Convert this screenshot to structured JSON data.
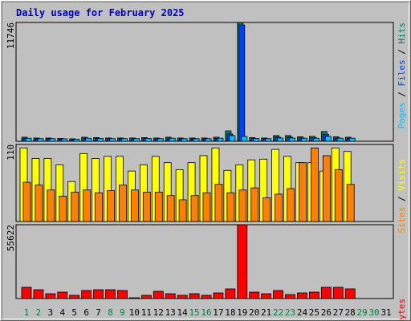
{
  "title": "Daily usage for February 2025",
  "chart_data": [
    {
      "type": "bar",
      "categories": [
        "1",
        "2",
        "3",
        "4",
        "5",
        "6",
        "7",
        "8",
        "9",
        "10",
        "11",
        "12",
        "13",
        "14",
        "15",
        "16",
        "17",
        "18",
        "19",
        "20",
        "21",
        "22",
        "23",
        "24",
        "25",
        "26",
        "27",
        "28",
        "29",
        "30",
        "31"
      ],
      "category_colors": [
        "#008040",
        "#008040",
        "#000000",
        "#000000",
        "#000000",
        "#000000",
        "#000000",
        "#008040",
        "#008040",
        "#000000",
        "#000000",
        "#000000",
        "#000000",
        "#000000",
        "#008040",
        "#008040",
        "#000000",
        "#000000",
        "#000000",
        "#000000",
        "#000000",
        "#008040",
        "#008040",
        "#000000",
        "#000000",
        "#000000",
        "#000000",
        "#000000",
        "#008040",
        "#008040",
        "#000000"
      ],
      "legend_separator": " / ",
      "ylim": [
        0,
        11746
      ],
      "yticks": [
        11746
      ],
      "series": [
        {
          "name": "Hits",
          "color": "#00805c",
          "values": [
            400,
            320,
            320,
            280,
            240,
            400,
            360,
            320,
            320,
            320,
            360,
            320,
            400,
            320,
            320,
            320,
            400,
            1030,
            11746,
            360,
            320,
            560,
            560,
            440,
            480,
            960,
            440,
            400,
            null,
            null,
            null
          ]
        },
        {
          "name": "Files",
          "color": "#0040ff",
          "values": [
            280,
            240,
            240,
            200,
            160,
            280,
            260,
            240,
            240,
            240,
            260,
            240,
            280,
            240,
            240,
            240,
            280,
            720,
            11500,
            260,
            240,
            400,
            400,
            320,
            340,
            680,
            320,
            280,
            null,
            null,
            null
          ]
        },
        {
          "name": "Pages",
          "color": "#00c0ff",
          "values": [
            300,
            260,
            260,
            240,
            200,
            300,
            280,
            260,
            260,
            260,
            280,
            260,
            300,
            260,
            260,
            260,
            300,
            560,
            480,
            280,
            260,
            320,
            320,
            300,
            300,
            480,
            300,
            300,
            null,
            null,
            null
          ]
        }
      ]
    },
    {
      "type": "bar",
      "legend_separator": " / ",
      "ylim": [
        0,
        110
      ],
      "yticks": [
        110
      ],
      "series": [
        {
          "name": "Visits",
          "color": "#ffff00",
          "values": [
            105,
            90,
            90,
            81,
            57,
            97,
            90,
            93,
            93,
            72,
            81,
            93,
            84,
            74,
            84,
            94,
            105,
            73,
            81,
            88,
            89,
            103,
            93,
            84,
            84,
            72,
            105,
            100,
            null,
            null,
            null
          ]
        },
        {
          "name": "Sites",
          "color": "#ff8000",
          "values": [
            56,
            52,
            45,
            36,
            42,
            45,
            41,
            44,
            52,
            45,
            42,
            42,
            37,
            31,
            37,
            41,
            53,
            41,
            45,
            48,
            34,
            39,
            47,
            84,
            105,
            94,
            74,
            53,
            null,
            null,
            null
          ]
        }
      ]
    },
    {
      "type": "bar",
      "ylim": [
        0,
        55622
      ],
      "yticks": [
        55622
      ],
      "series": [
        {
          "name": "KBytes",
          "color": "#ff0000",
          "values": [
            8460,
            6650,
            3630,
            4840,
            2420,
            6050,
            6650,
            6650,
            6050,
            600,
            2420,
            5440,
            3630,
            2420,
            3630,
            2420,
            4230,
            7260,
            55622,
            4840,
            3630,
            6050,
            3020,
            4230,
            4840,
            8460,
            8460,
            7260,
            null,
            null,
            null
          ]
        }
      ]
    }
  ]
}
